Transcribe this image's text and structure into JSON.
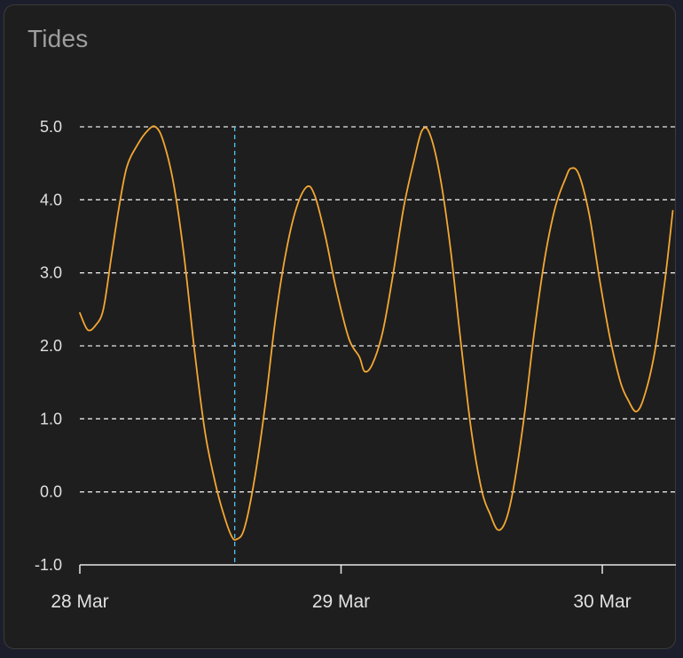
{
  "card": {
    "title": "Tides"
  },
  "chart_data": {
    "type": "line",
    "title": "",
    "xlabel": "",
    "ylabel": "",
    "x_unit": "days since 28 Mar",
    "xlim": [
      0,
      2.27
    ],
    "ylim": [
      -1.0,
      5.0
    ],
    "y_ticks": [
      "-1.0",
      "0.0",
      "1.0",
      "2.0",
      "3.0",
      "4.0",
      "5.0"
    ],
    "x_ticks": [
      {
        "value": 0,
        "label": "28 Mar"
      },
      {
        "value": 1,
        "label": "29 Mar"
      },
      {
        "value": 2,
        "label": "30 Mar"
      }
    ],
    "grid": true,
    "line_color": "#f4a733",
    "cursor_color": "#4fc3f7",
    "cursor_x": 0.593,
    "series": [
      {
        "name": "",
        "points": [
          [
            0.0,
            2.45
          ],
          [
            0.03,
            2.22
          ],
          [
            0.06,
            2.28
          ],
          [
            0.09,
            2.5
          ],
          [
            0.12,
            3.2
          ],
          [
            0.15,
            3.9
          ],
          [
            0.18,
            4.45
          ],
          [
            0.22,
            4.75
          ],
          [
            0.26,
            4.95
          ],
          [
            0.29,
            5.0
          ],
          [
            0.32,
            4.8
          ],
          [
            0.36,
            4.2
          ],
          [
            0.4,
            3.2
          ],
          [
            0.44,
            1.9
          ],
          [
            0.48,
            0.8
          ],
          [
            0.52,
            0.1
          ],
          [
            0.55,
            -0.3
          ],
          [
            0.58,
            -0.6
          ],
          [
            0.6,
            -0.65
          ],
          [
            0.63,
            -0.5
          ],
          [
            0.67,
            0.2
          ],
          [
            0.71,
            1.2
          ],
          [
            0.75,
            2.4
          ],
          [
            0.79,
            3.3
          ],
          [
            0.83,
            3.9
          ],
          [
            0.87,
            4.18
          ],
          [
            0.9,
            4.05
          ],
          [
            0.94,
            3.5
          ],
          [
            0.98,
            2.8
          ],
          [
            1.03,
            2.1
          ],
          [
            1.07,
            1.85
          ],
          [
            1.09,
            1.65
          ],
          [
            1.12,
            1.75
          ],
          [
            1.16,
            2.2
          ],
          [
            1.2,
            3.0
          ],
          [
            1.24,
            3.9
          ],
          [
            1.28,
            4.55
          ],
          [
            1.31,
            4.95
          ],
          [
            1.34,
            4.9
          ],
          [
            1.38,
            4.3
          ],
          [
            1.42,
            3.3
          ],
          [
            1.46,
            2.0
          ],
          [
            1.5,
            0.8
          ],
          [
            1.54,
            0.0
          ],
          [
            1.57,
            -0.3
          ],
          [
            1.6,
            -0.52
          ],
          [
            1.63,
            -0.4
          ],
          [
            1.66,
            0.05
          ],
          [
            1.7,
            1.0
          ],
          [
            1.74,
            2.2
          ],
          [
            1.78,
            3.2
          ],
          [
            1.82,
            3.9
          ],
          [
            1.86,
            4.3
          ],
          [
            1.88,
            4.43
          ],
          [
            1.91,
            4.35
          ],
          [
            1.95,
            3.8
          ],
          [
            1.99,
            2.9
          ],
          [
            2.03,
            2.1
          ],
          [
            2.07,
            1.5
          ],
          [
            2.1,
            1.25
          ],
          [
            2.13,
            1.1
          ],
          [
            2.16,
            1.3
          ],
          [
            2.2,
            1.9
          ],
          [
            2.24,
            2.9
          ],
          [
            2.27,
            3.85
          ]
        ]
      }
    ]
  }
}
